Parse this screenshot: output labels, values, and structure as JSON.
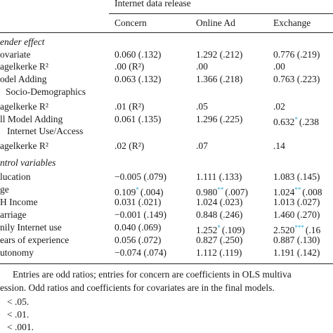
{
  "table": {
    "group_header": "Internet data release",
    "columns": [
      "Concern",
      "Online Ad",
      "Exchange"
    ],
    "rows": [
      {
        "label": "ender effect",
        "section": true,
        "cells": []
      },
      {
        "label": "ovariate",
        "cells": [
          "0.060 (.132)",
          "1.292 (.212)",
          "0.776 (.219)"
        ]
      },
      {
        "label": "agelkerke R²",
        "cells": [
          ".00 (R²)",
          ".00",
          ".00"
        ]
      },
      {
        "label": "odel Adding",
        "cells": [
          "0.063 (.132)",
          "1.366 (.218)",
          "0.763 (.223)"
        ]
      },
      {
        "label": "Socio-Demographics",
        "cells": []
      },
      {
        "label": "agelkerke R²",
        "cells": [
          ".01 (R²)",
          ".05",
          ".02"
        ]
      },
      {
        "label": "ll Model Adding",
        "cells": [
          "0.061 (.135)",
          "1.296 (.225)",
          {
            "value": "0.632",
            "sup": "*",
            "se": "(.238"
          }
        ]
      },
      {
        "label": "Internet Use/Access",
        "cells": []
      },
      {
        "label": "agelkerke R²",
        "cells": [
          ".02 (R²)",
          ".07",
          ".14"
        ]
      },
      {
        "label": "ntrol variables",
        "section": true,
        "cells": []
      },
      {
        "label": "lucation",
        "cells": [
          "−0.005 (.079)",
          "1.111 (.133)",
          "1.083 (.145)"
        ]
      },
      {
        "label": "ge",
        "cells": [
          {
            "value": "0.109",
            "sup": "*",
            "se": "(.004)"
          },
          {
            "value": "0.980",
            "sup": "**",
            "se": "(.007)"
          },
          {
            "value": "1.024",
            "sup": "**",
            "se": "(.008"
          }
        ]
      },
      {
        "label": "H Income",
        "cells": [
          "0.031 (.021)",
          "1.024 (.023)",
          "1.013 (.027)"
        ]
      },
      {
        "label": "arriage",
        "cells": [
          "−0.001 (.149)",
          "0.848 (.246)",
          "1.460 (.270)"
        ]
      },
      {
        "label": "nily Internet use",
        "cells": [
          "0.040 (.069)",
          {
            "value": "1.252",
            "sup": "*",
            "se": "(.109)"
          },
          {
            "value": "2.520",
            "sup": "***",
            "se": "(.16"
          }
        ]
      },
      {
        "label": "ears of experience",
        "cells": [
          "0.056 (.072)",
          "0.827 (.250)",
          "0.887 (.130)"
        ]
      },
      {
        "label": "utonomy",
        "cells": [
          "−0.074 (.074)",
          "1.112 (.119)",
          "1.191 (.142)"
        ]
      }
    ],
    "notes": [
      "Entries are odd ratios; entries for concern are coefficients in OLS multiva",
      "ession. Odd ratios and coefficients for covariates are in the final models.",
      "< .05.",
      "< .01.",
      "< .001."
    ]
  }
}
